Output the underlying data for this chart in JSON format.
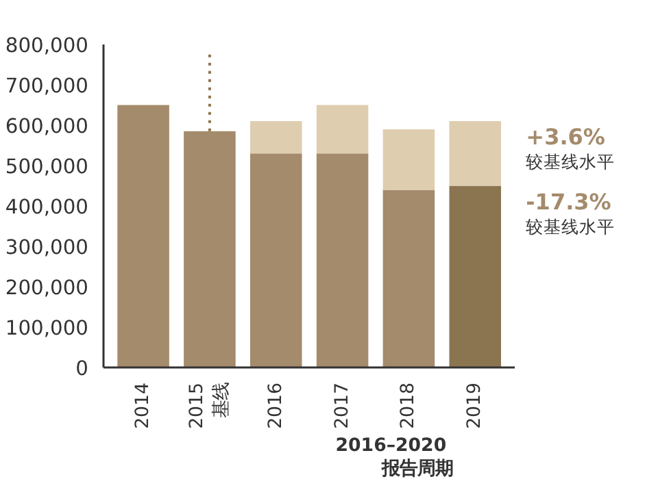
{
  "chart_data": {
    "type": "bar",
    "stacked": true,
    "categories": [
      "2014",
      "2015\n基线",
      "2016",
      "2017",
      "2018",
      "2019"
    ],
    "series": [
      {
        "colors": [
          "#a48b6b",
          "#a48b6b",
          "#a48b6b",
          "#a48b6b",
          "#a48b6b",
          "#8b7550"
        ],
        "values": [
          650000,
          585000,
          530000,
          530000,
          440000,
          450000
        ]
      },
      {
        "color": "#dfcdb0",
        "values": [
          null,
          null,
          80000,
          120000,
          150000,
          160000
        ]
      }
    ],
    "ylim": [
      0,
      800000
    ],
    "yticks": [
      {
        "value": 0,
        "label": "0"
      },
      {
        "value": 100000,
        "label": "100,000"
      },
      {
        "value": 200000,
        "label": "200,000"
      },
      {
        "value": 300000,
        "label": "300,000"
      },
      {
        "value": 400000,
        "label": "400,000"
      },
      {
        "value": 500000,
        "label": "500,000"
      },
      {
        "value": 600000,
        "label": "600,000"
      },
      {
        "value": 700000,
        "label": "700,000"
      },
      {
        "value": 800000,
        "label": "800,000"
      }
    ],
    "ref_lines": [
      {
        "axis": "x",
        "value": "2015\n基线",
        "color": "#8b7550",
        "line_style": "dotted"
      }
    ],
    "annotations": [
      {
        "text": "+3.6%\n较基线水平",
        "x": "2019",
        "y": 610000
      },
      {
        "text": "-17.3%\n较基线水平",
        "x": "2019",
        "y": 450000
      },
      "2016–2020\n报告周期"
    ],
    "grid": false
  }
}
